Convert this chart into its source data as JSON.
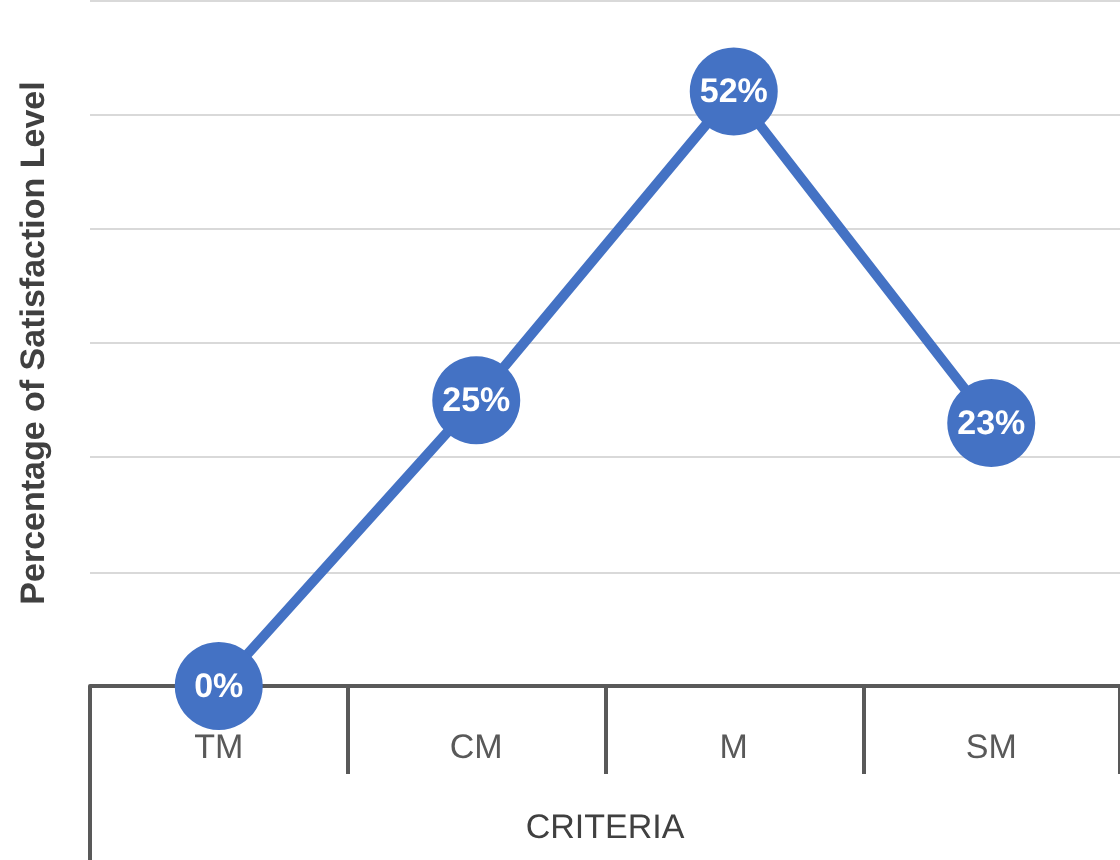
{
  "chart_data": {
    "type": "line",
    "ylabel": "Percentage of Satisfaction Level",
    "xlabel": "CRITERIA",
    "categories": [
      "TM",
      "CM",
      "M",
      "SM"
    ],
    "series": [
      {
        "color": "#4472c4",
        "values": [
          0,
          25,
          52,
          23
        ],
        "value_labels": [
          "0%",
          "25%",
          "52%",
          "23%"
        ]
      }
    ],
    "ylim": [
      0,
      60
    ],
    "yticks": [
      {
        "value": 0,
        "label": null
      },
      {
        "value": 10,
        "label": null
      },
      {
        "value": 20,
        "label": null
      },
      {
        "value": 30,
        "label": null
      },
      {
        "value": 40,
        "label": null
      },
      {
        "value": 50,
        "label": null
      },
      {
        "value": 60,
        "label": null
      }
    ],
    "tick_labels": "x",
    "grid": "y",
    "marker": "circle",
    "line_style": "solid"
  }
}
